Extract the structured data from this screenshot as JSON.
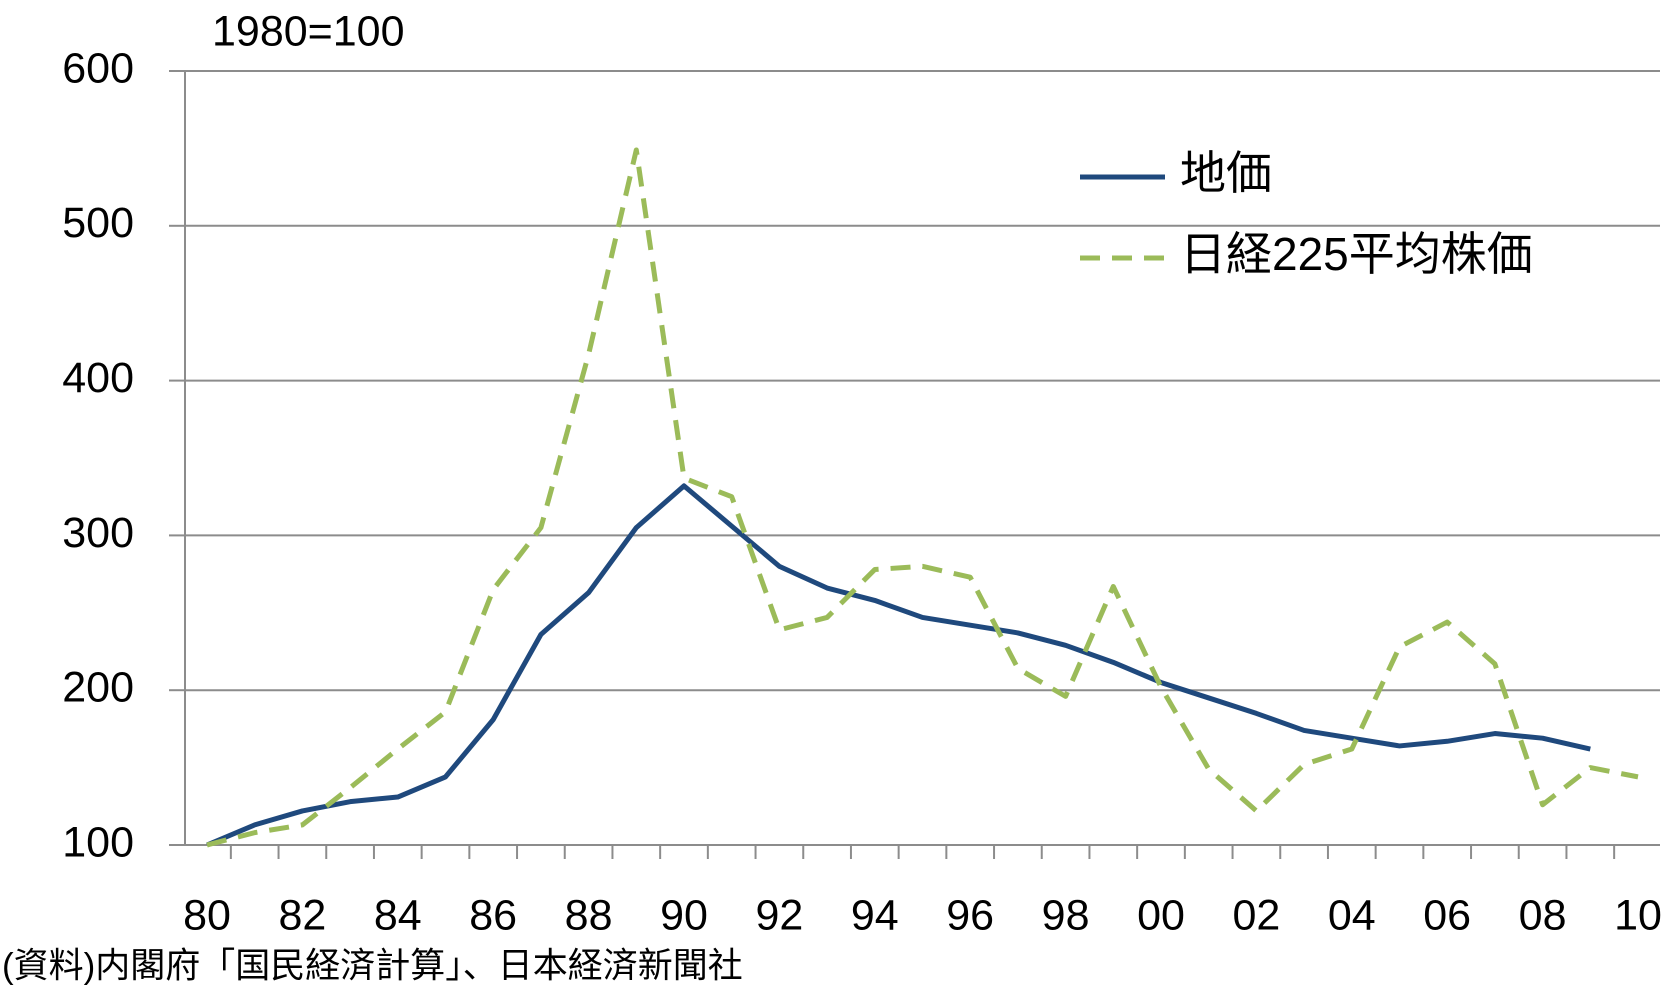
{
  "chart_data": {
    "type": "line",
    "y_label": "1980=100",
    "note": "(資料)内閣府「国民経済計算」、日本経済新聞社",
    "categories": [
      "80",
      null,
      "82",
      null,
      "84",
      null,
      "86",
      null,
      "88",
      null,
      "90",
      null,
      "92",
      null,
      "94",
      null,
      "96",
      null,
      "98",
      null,
      "00",
      null,
      "02",
      null,
      "04",
      null,
      "06",
      null,
      "08",
      null,
      "10"
    ],
    "series": [
      {
        "name": "地価",
        "color": "#1f497d",
        "dash": false,
        "values": [
          100,
          113,
          122,
          128,
          131,
          144,
          181,
          236,
          263,
          305,
          332,
          306,
          280,
          266,
          258,
          247,
          242,
          237,
          229,
          218,
          205,
          195,
          185,
          174,
          169,
          164,
          167,
          172,
          169,
          162,
          null
        ]
      },
      {
        "name": "日経225平均株価",
        "color": "#9bbb59",
        "dash": true,
        "values": [
          100,
          108,
          113,
          137,
          162,
          186,
          265,
          305,
          417,
          549,
          337,
          325,
          239,
          247,
          278,
          280,
          273,
          214,
          196,
          267,
          202,
          149,
          122,
          152,
          162,
          228,
          244,
          217,
          126,
          150,
          144
        ]
      }
    ],
    "ylim": [
      100,
      600
    ],
    "yticks": [
      100,
      200,
      300,
      400,
      500,
      600
    ],
    "grid": true,
    "legend": "upper right"
  }
}
